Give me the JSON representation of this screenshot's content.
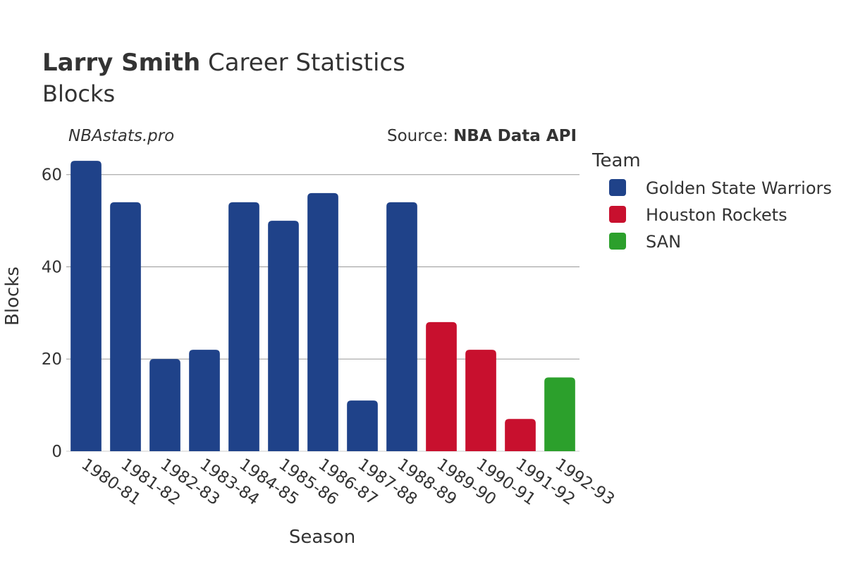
{
  "header": {
    "title_bold": "Larry Smith",
    "title_rest": " Career Statistics",
    "subtitle": "Blocks"
  },
  "watermark": "NBAstats.pro",
  "source": {
    "prefix": "Source: ",
    "name": "NBA Data API"
  },
  "legend": {
    "title": "Team",
    "items": [
      {
        "label": "Golden State Warriors",
        "color": "#1f4289"
      },
      {
        "label": "Houston Rockets",
        "color": "#c8102e"
      },
      {
        "label": "SAN",
        "color": "#2ca02c"
      }
    ]
  },
  "chart_data": {
    "type": "bar",
    "title": "Larry Smith Career Statistics",
    "subtitle": "Blocks",
    "xlabel": "Season",
    "ylabel": "Blocks",
    "ylim": [
      0,
      65
    ],
    "yticks": [
      0,
      20,
      40,
      60
    ],
    "grid": true,
    "legend_position": "right",
    "categories": [
      "1980-81",
      "1981-82",
      "1982-83",
      "1983-84",
      "1984-85",
      "1985-86",
      "1986-87",
      "1987-88",
      "1988-89",
      "1989-90",
      "1990-91",
      "1991-92",
      "1992-93"
    ],
    "values": [
      63,
      54,
      20,
      22,
      54,
      50,
      56,
      11,
      54,
      28,
      22,
      7,
      16
    ],
    "teams": [
      "Golden State Warriors",
      "Golden State Warriors",
      "Golden State Warriors",
      "Golden State Warriors",
      "Golden State Warriors",
      "Golden State Warriors",
      "Golden State Warriors",
      "Golden State Warriors",
      "Golden State Warriors",
      "Houston Rockets",
      "Houston Rockets",
      "Houston Rockets",
      "SAN"
    ]
  }
}
